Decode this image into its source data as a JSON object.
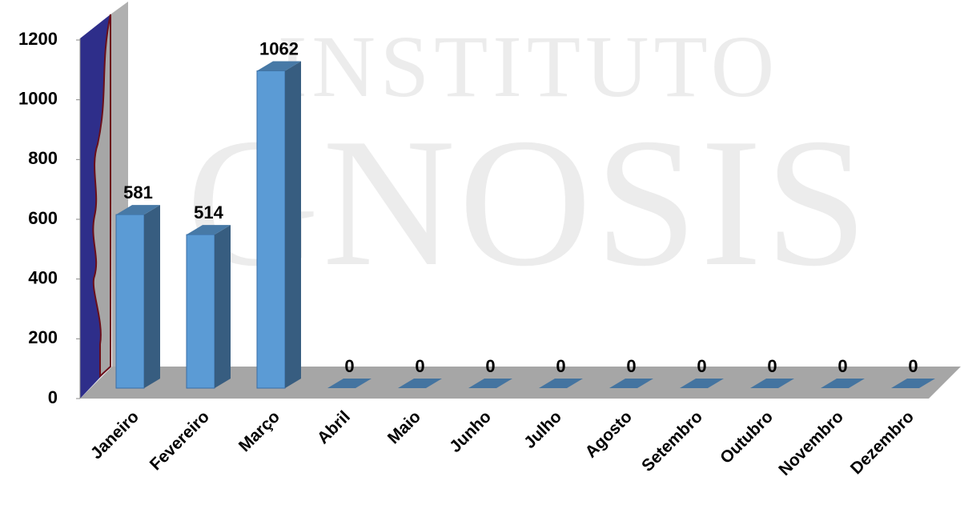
{
  "chart_data": {
    "type": "bar3d",
    "watermark": [
      "INSTITUTO",
      "GNOSIS"
    ],
    "categories": [
      "Janeiro",
      "Fevereiro",
      "Março",
      "Abril",
      "Maio",
      "Junho",
      "Julho",
      "Agosto",
      "Setembro",
      "Outubro",
      "Novembro",
      "Dezembro"
    ],
    "values": [
      581,
      514,
      1062,
      0,
      0,
      0,
      0,
      0,
      0,
      0,
      0,
      0
    ],
    "color": "#5b9bd5",
    "ylim": [
      0,
      1200
    ],
    "yticks": [
      0,
      200,
      400,
      600,
      800,
      1000,
      1200
    ],
    "grid": false
  }
}
